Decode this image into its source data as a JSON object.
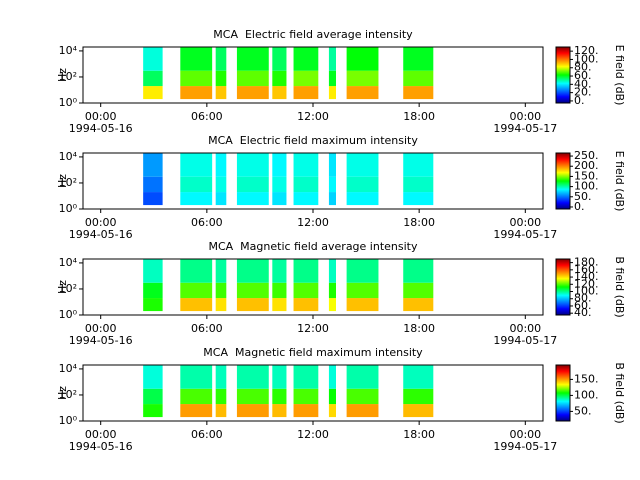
{
  "chart_data": [
    {
      "type": "spectrogram",
      "title": "MCA  Electric field average intensity",
      "ylabel": "Hz",
      "xlim": [
        -1,
        25
      ],
      "xticks": [
        {
          "value": 0,
          "label": "00:00"
        },
        {
          "value": 6,
          "label": "06:00"
        },
        {
          "value": 12,
          "label": "12:00"
        },
        {
          "value": 18,
          "label": "18:00"
        },
        {
          "value": 24,
          "label": "00:00"
        }
      ],
      "xtick_dates": [
        {
          "value": 0,
          "label": "1994-05-16"
        },
        {
          "value": 24,
          "label": "1994-05-17"
        }
      ],
      "log_y": true,
      "ylim": [
        1,
        20000
      ],
      "yticks": [
        {
          "value": 1,
          "label": "10⁰"
        },
        {
          "value": 100,
          "label": "10²"
        },
        {
          "value": 10000,
          "label": "10⁴"
        }
      ],
      "band_edges": [
        2,
        20,
        300,
        20000
      ],
      "segments": [
        [
          2.4,
          3.5
        ],
        [
          4.5,
          6.3
        ],
        [
          6.5,
          7.1
        ],
        [
          7.7,
          9.5
        ],
        [
          9.7,
          10.5
        ],
        [
          10.9,
          12.3
        ],
        [
          12.9,
          13.3
        ],
        [
          13.9,
          15.7
        ],
        [
          17.1,
          18.8
        ]
      ],
      "levels": [
        [
          85,
          55,
          45
        ],
        [
          95,
          70,
          60
        ],
        [
          90,
          65,
          55
        ],
        [
          95,
          70,
          60
        ],
        [
          90,
          65,
          55
        ],
        [
          95,
          72,
          60
        ],
        [
          85,
          60,
          50
        ],
        [
          95,
          72,
          62
        ],
        [
          95,
          70,
          60
        ]
      ],
      "colorbar_label": "E field (dB)",
      "clim": [
        -5,
        130
      ],
      "cticks": [
        {
          "value": 0,
          "label": "0."
        },
        {
          "value": 20,
          "label": "20."
        },
        {
          "value": 40,
          "label": "40."
        },
        {
          "value": 60,
          "label": "60."
        },
        {
          "value": 80,
          "label": "80."
        },
        {
          "value": 100,
          "label": "100."
        },
        {
          "value": 120,
          "label": "120."
        }
      ]
    },
    {
      "type": "spectrogram",
      "title": "MCA  Electric field maximum intensity",
      "ylabel": "Hz",
      "xlim": [
        -1,
        25
      ],
      "xticks": [
        {
          "value": 0,
          "label": "00:00"
        },
        {
          "value": 6,
          "label": "06:00"
        },
        {
          "value": 12,
          "label": "12:00"
        },
        {
          "value": 18,
          "label": "18:00"
        },
        {
          "value": 24,
          "label": "00:00"
        }
      ],
      "xtick_dates": [
        {
          "value": 0,
          "label": "1994-05-16"
        },
        {
          "value": 24,
          "label": "1994-05-17"
        }
      ],
      "log_y": true,
      "ylim": [
        1,
        20000
      ],
      "yticks": [
        {
          "value": 1,
          "label": "10⁰"
        },
        {
          "value": 100,
          "label": "10²"
        },
        {
          "value": 10000,
          "label": "10⁴"
        }
      ],
      "band_edges": [
        2,
        20,
        300,
        20000
      ],
      "segments": [
        [
          2.4,
          3.5
        ],
        [
          4.5,
          6.3
        ],
        [
          6.5,
          7.1
        ],
        [
          7.7,
          9.5
        ],
        [
          9.7,
          10.5
        ],
        [
          10.9,
          12.3
        ],
        [
          12.9,
          13.3
        ],
        [
          13.9,
          15.7
        ],
        [
          17.1,
          18.8
        ]
      ],
      "levels": [
        [
          40,
          50,
          60
        ],
        [
          85,
          95,
          90
        ],
        [
          80,
          90,
          85
        ],
        [
          85,
          95,
          90
        ],
        [
          80,
          90,
          85
        ],
        [
          85,
          95,
          90
        ],
        [
          75,
          85,
          80
        ],
        [
          85,
          95,
          90
        ],
        [
          85,
          95,
          90
        ]
      ],
      "colorbar_label": "E field (dB)",
      "clim": [
        -10,
        265
      ],
      "cticks": [
        {
          "value": 0,
          "label": "0."
        },
        {
          "value": 50,
          "label": "50."
        },
        {
          "value": 100,
          "label": "100."
        },
        {
          "value": 150,
          "label": "150."
        },
        {
          "value": 200,
          "label": "200."
        },
        {
          "value": 250,
          "label": "250."
        }
      ]
    },
    {
      "type": "spectrogram",
      "title": "MCA  Magnetic field average intensity",
      "ylabel": "Hz",
      "xlim": [
        -1,
        25
      ],
      "xticks": [
        {
          "value": 0,
          "label": "00:00"
        },
        {
          "value": 6,
          "label": "06:00"
        },
        {
          "value": 12,
          "label": "12:00"
        },
        {
          "value": 18,
          "label": "18:00"
        },
        {
          "value": 24,
          "label": "00:00"
        }
      ],
      "xtick_dates": [
        {
          "value": 0,
          "label": "1994-05-16"
        },
        {
          "value": 24,
          "label": "1994-05-17"
        }
      ],
      "log_y": true,
      "ylim": [
        1,
        20000
      ],
      "yticks": [
        {
          "value": 1,
          "label": "10⁰"
        },
        {
          "value": 100,
          "label": "10²"
        },
        {
          "value": 10000,
          "label": "10⁴"
        }
      ],
      "band_edges": [
        2,
        20,
        300,
        20000
      ],
      "segments": [
        [
          2.4,
          3.5
        ],
        [
          4.5,
          6.3
        ],
        [
          6.5,
          7.1
        ],
        [
          7.7,
          9.5
        ],
        [
          9.7,
          10.5
        ],
        [
          10.9,
          12.3
        ],
        [
          12.9,
          13.3
        ],
        [
          13.9,
          15.7
        ],
        [
          17.1,
          18.8
        ]
      ],
      "levels": [
        [
          115,
          110,
          95
        ],
        [
          145,
          120,
          100
        ],
        [
          140,
          118,
          98
        ],
        [
          145,
          120,
          100
        ],
        [
          140,
          118,
          98
        ],
        [
          145,
          120,
          100
        ],
        [
          135,
          115,
          95
        ],
        [
          145,
          120,
          100
        ],
        [
          145,
          120,
          100
        ]
      ],
      "colorbar_label": "B field (dB)",
      "clim": [
        35,
        190
      ],
      "cticks": [
        {
          "value": 40,
          "label": "40."
        },
        {
          "value": 60,
          "label": "60."
        },
        {
          "value": 80,
          "label": "80."
        },
        {
          "value": 100,
          "label": "100."
        },
        {
          "value": 120,
          "label": "120."
        },
        {
          "value": 140,
          "label": "140."
        },
        {
          "value": 160,
          "label": "160."
        },
        {
          "value": 180,
          "label": "180."
        }
      ]
    },
    {
      "type": "spectrogram",
      "title": "MCA  Magnetic field maximum intensity",
      "ylabel": "Hz",
      "xlim": [
        -1,
        25
      ],
      "xticks": [
        {
          "value": 0,
          "label": "00:00"
        },
        {
          "value": 6,
          "label": "06:00"
        },
        {
          "value": 12,
          "label": "12:00"
        },
        {
          "value": 18,
          "label": "18:00"
        },
        {
          "value": 24,
          "label": "00:00"
        }
      ],
      "xtick_dates": [
        {
          "value": 0,
          "label": "1994-05-16"
        },
        {
          "value": 24,
          "label": "1994-05-17"
        }
      ],
      "log_y": true,
      "ylim": [
        1,
        20000
      ],
      "yticks": [
        {
          "value": 1,
          "label": "10⁰"
        },
        {
          "value": 100,
          "label": "10²"
        },
        {
          "value": 10000,
          "label": "10⁴"
        }
      ],
      "band_edges": [
        2,
        20,
        300,
        20000
      ],
      "segments": [
        [
          2.4,
          3.5
        ],
        [
          4.5,
          6.3
        ],
        [
          6.5,
          7.1
        ],
        [
          7.7,
          9.5
        ],
        [
          9.7,
          10.5
        ],
        [
          10.9,
          12.3
        ],
        [
          12.9,
          13.3
        ],
        [
          13.9,
          15.7
        ],
        [
          17.1,
          18.8
        ]
      ],
      "levels": [
        [
          110,
          100,
          85
        ],
        [
          150,
          115,
          90
        ],
        [
          145,
          112,
          88
        ],
        [
          150,
          115,
          90
        ],
        [
          145,
          112,
          88
        ],
        [
          150,
          115,
          90
        ],
        [
          140,
          108,
          85
        ],
        [
          150,
          115,
          90
        ],
        [
          145,
          112,
          88
        ]
      ],
      "colorbar_label": "B field (dB)",
      "clim": [
        20,
        195
      ],
      "cticks": [
        {
          "value": 50,
          "label": "50."
        },
        {
          "value": 100,
          "label": "100."
        },
        {
          "value": 150,
          "label": "150."
        }
      ]
    }
  ]
}
